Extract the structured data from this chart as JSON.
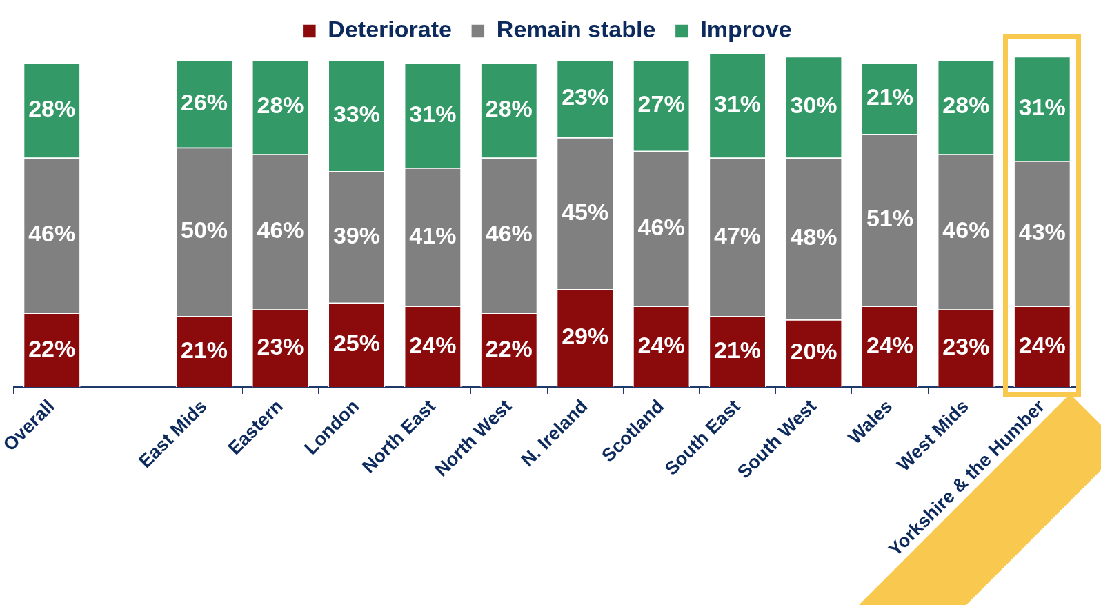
{
  "chart_data": {
    "type": "bar",
    "stacked": true,
    "legend": "top",
    "categories": [
      "Overall",
      null,
      "East Mids",
      "Eastern",
      "London",
      "North East",
      "North West",
      "N. Ireland",
      "Scotland",
      "South East",
      "South West",
      "Wales",
      "West Mids",
      "Yorkshire & the Humber"
    ],
    "series": [
      {
        "name": "Deteriorate",
        "color": "#8b0a0c",
        "values": [
          22,
          null,
          21,
          23,
          25,
          24,
          22,
          29,
          24,
          21,
          20,
          24,
          23,
          24
        ],
        "value_labels": [
          "22%",
          null,
          "21%",
          "23%",
          "25%",
          "24%",
          "22%",
          "29%",
          "24%",
          "21%",
          "20%",
          "24%",
          "23%",
          "24%"
        ]
      },
      {
        "name": "Remain stable",
        "color": "#808080",
        "values": [
          46,
          null,
          50,
          46,
          39,
          41,
          46,
          45,
          46,
          47,
          48,
          51,
          46,
          43
        ],
        "value_labels": [
          "46%",
          null,
          "50%",
          "46%",
          "39%",
          "41%",
          "46%",
          "45%",
          "46%",
          "47%",
          "48%",
          "51%",
          "46%",
          "43%"
        ]
      },
      {
        "name": "Improve",
        "color": "#339966",
        "values": [
          28,
          null,
          26,
          28,
          33,
          31,
          28,
          23,
          27,
          31,
          30,
          21,
          28,
          31
        ],
        "value_labels": [
          "28%",
          null,
          "26%",
          "28%",
          "33%",
          "31%",
          "28%",
          "23%",
          "27%",
          "31%",
          "30%",
          "21%",
          "28%",
          "31%"
        ]
      }
    ]
  }
}
